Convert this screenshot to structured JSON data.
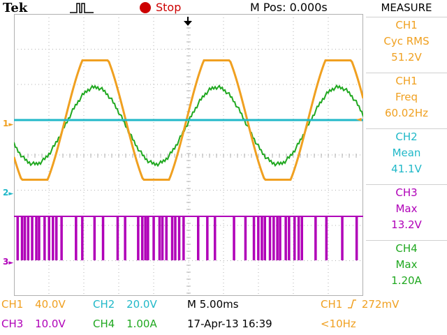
{
  "header": {
    "brand": "Tek",
    "trigger_icon": "pulse-icon",
    "state_label": "Stop",
    "mpos": "M Pos: 0.000s"
  },
  "colors": {
    "ch1": "#f0a020",
    "ch2": "#20b8c8",
    "ch3": "#b000b8",
    "ch4": "#20a820",
    "grid": "#b0b0b0",
    "stop": "#cc0000"
  },
  "measure": {
    "title": "MEASURE",
    "items": [
      {
        "channel": "CH1",
        "label": "Cyc RMS",
        "value": "51.2V",
        "color": "#f0a020"
      },
      {
        "channel": "CH1",
        "label": "Freq",
        "value": "60.02Hz",
        "color": "#f0a020"
      },
      {
        "channel": "CH2",
        "label": "Mean",
        "value": "41.1V",
        "color": "#20b8c8"
      },
      {
        "channel": "CH3",
        "label": "Max",
        "value": "13.2V",
        "color": "#b000b8"
      },
      {
        "channel": "CH4",
        "label": "Max",
        "value": "1.20A",
        "color": "#20a820"
      }
    ]
  },
  "channel_markers": {
    "ch1": "1",
    "ch2": "2",
    "ch3": "3"
  },
  "status": {
    "ch1_label": "CH1",
    "ch1_scale": "40.0V",
    "ch2_label": "CH2",
    "ch2_scale": "20.0V",
    "ch3_label": "CH3",
    "ch3_scale": "10.0V",
    "ch4_label": "CH4",
    "ch4_scale": "1.00A",
    "timebase": "M 5.00ms",
    "datetime": "17-Apr-13 16:39",
    "trigger_source": "CH1",
    "trigger_level": "272mV",
    "trigger_freq": "<10Hz"
  }
}
